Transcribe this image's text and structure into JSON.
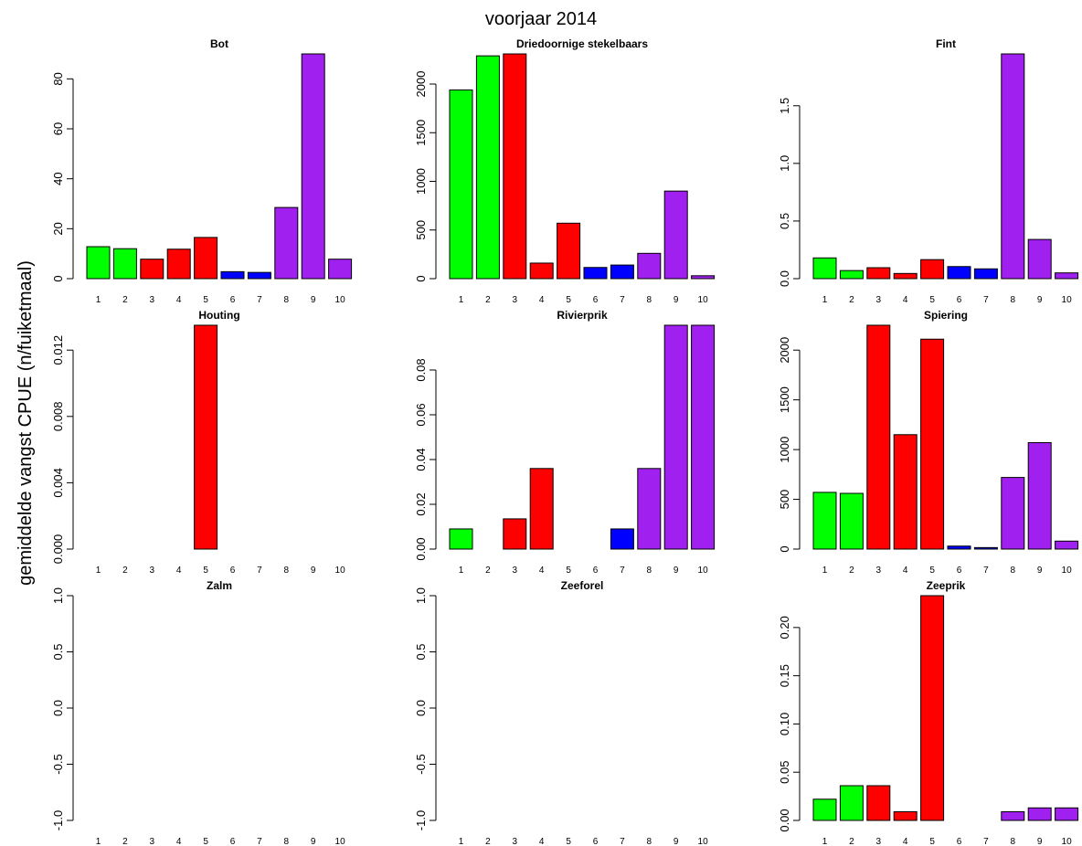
{
  "title": "voorjaar 2014",
  "ylabel": "gemiddelde vangst CPUE (n/fuiketmaal)",
  "colors": {
    "green": "#00FF00",
    "red": "#FF0000",
    "blue": "#0000FF",
    "purple": "#A020F0",
    "outline": "#000000"
  },
  "chart_data": [
    {
      "type": "bar",
      "title": "Bot",
      "categories": [
        "1",
        "2",
        "3",
        "4",
        "5",
        "6",
        "7",
        "8",
        "9",
        "10"
      ],
      "values": [
        12.8,
        12.0,
        7.8,
        11.8,
        16.5,
        2.8,
        2.5,
        28.5,
        90.0,
        7.8
      ],
      "bar_colors": [
        "green",
        "green",
        "red",
        "red",
        "red",
        "blue",
        "blue",
        "purple",
        "purple",
        "purple"
      ],
      "ylim": [
        0,
        90
      ],
      "yticks": [
        0,
        20,
        40,
        60,
        80
      ],
      "ytick_labels": [
        "0",
        "20",
        "40",
        "60",
        "80"
      ]
    },
    {
      "type": "bar",
      "title": "Driedoornige stekelbaars",
      "categories": [
        "1",
        "2",
        "3",
        "4",
        "5",
        "6",
        "7",
        "8",
        "9",
        "10"
      ],
      "values": [
        1940,
        2290,
        2310,
        160,
        570,
        115,
        140,
        260,
        900,
        30
      ],
      "bar_colors": [
        "green",
        "green",
        "red",
        "red",
        "red",
        "blue",
        "blue",
        "purple",
        "purple",
        "purple"
      ],
      "ylim": [
        0,
        2310
      ],
      "yticks": [
        0,
        500,
        1000,
        1500,
        2000
      ],
      "ytick_labels": [
        "0",
        "500",
        "1000",
        "1500",
        "2000"
      ]
    },
    {
      "type": "bar",
      "title": "Fint",
      "categories": [
        "1",
        "2",
        "3",
        "4",
        "5",
        "6",
        "7",
        "8",
        "9",
        "10"
      ],
      "values": [
        0.18,
        0.07,
        0.095,
        0.045,
        0.165,
        0.105,
        0.085,
        1.95,
        0.34,
        0.05
      ],
      "bar_colors": [
        "green",
        "green",
        "red",
        "red",
        "red",
        "blue",
        "blue",
        "purple",
        "purple",
        "purple"
      ],
      "ylim": [
        0,
        1.95
      ],
      "yticks": [
        0,
        0.5,
        1.0,
        1.5
      ],
      "ytick_labels": [
        "0.0",
        "0.5",
        "1.0",
        "1.5"
      ]
    },
    {
      "type": "bar",
      "title": "Houting",
      "categories": [
        "1",
        "2",
        "3",
        "4",
        "5",
        "6",
        "7",
        "8",
        "9",
        "10"
      ],
      "values": [
        0,
        0,
        0,
        0,
        0.0135,
        0,
        0,
        0,
        0,
        0
      ],
      "bar_colors": [
        "green",
        "green",
        "red",
        "red",
        "red",
        "blue",
        "blue",
        "purple",
        "purple",
        "purple"
      ],
      "ylim": [
        0,
        0.0135
      ],
      "yticks": [
        0,
        0.004,
        0.008,
        0.012
      ],
      "ytick_labels": [
        "0.000",
        "0.004",
        "0.008",
        "0.012"
      ]
    },
    {
      "type": "bar",
      "title": "Rivierprik",
      "categories": [
        "1",
        "2",
        "3",
        "4",
        "5",
        "6",
        "7",
        "8",
        "9",
        "10"
      ],
      "values": [
        0.009,
        0,
        0.0135,
        0.036,
        0,
        0,
        0.009,
        0.036,
        0.1,
        0.1
      ],
      "bar_colors": [
        "green",
        "green",
        "red",
        "red",
        "red",
        "blue",
        "blue",
        "purple",
        "purple",
        "purple"
      ],
      "ylim": [
        0,
        0.1
      ],
      "yticks": [
        0,
        0.02,
        0.04,
        0.06,
        0.08
      ],
      "ytick_labels": [
        "0.00",
        "0.02",
        "0.04",
        "0.06",
        "0.08"
      ]
    },
    {
      "type": "bar",
      "title": "Spiering",
      "categories": [
        "1",
        "2",
        "3",
        "4",
        "5",
        "6",
        "7",
        "8",
        "9",
        "10"
      ],
      "values": [
        570,
        560,
        2250,
        1150,
        2110,
        30,
        15,
        720,
        1070,
        80
      ],
      "bar_colors": [
        "green",
        "green",
        "red",
        "red",
        "red",
        "blue",
        "blue",
        "purple",
        "purple",
        "purple"
      ],
      "ylim": [
        0,
        2250
      ],
      "yticks": [
        0,
        500,
        1000,
        1500,
        2000
      ],
      "ytick_labels": [
        "0",
        "500",
        "1000",
        "1500",
        "2000"
      ]
    },
    {
      "type": "bar",
      "title": "Zalm",
      "categories": [
        "1",
        "2",
        "3",
        "4",
        "5",
        "6",
        "7",
        "8",
        "9",
        "10"
      ],
      "values": [
        0,
        0,
        0,
        0,
        0,
        0,
        0,
        0,
        0,
        0
      ],
      "bar_colors": [
        "green",
        "green",
        "red",
        "red",
        "red",
        "blue",
        "blue",
        "purple",
        "purple",
        "purple"
      ],
      "ylim": [
        -1,
        1
      ],
      "yticks": [
        -1.0,
        -0.5,
        0.0,
        0.5,
        1.0
      ],
      "ytick_labels": [
        "-1.0",
        "-0.5",
        "0.0",
        "0.5",
        "1.0"
      ]
    },
    {
      "type": "bar",
      "title": "Zeeforel",
      "categories": [
        "1",
        "2",
        "3",
        "4",
        "5",
        "6",
        "7",
        "8",
        "9",
        "10"
      ],
      "values": [
        0,
        0,
        0,
        0,
        0,
        0,
        0,
        0,
        0,
        0
      ],
      "bar_colors": [
        "green",
        "green",
        "red",
        "red",
        "red",
        "blue",
        "blue",
        "purple",
        "purple",
        "purple"
      ],
      "ylim": [
        -1,
        1
      ],
      "yticks": [
        -1.0,
        -0.5,
        0.0,
        0.5,
        1.0
      ],
      "ytick_labels": [
        "-1.0",
        "-0.5",
        "0.0",
        "0.5",
        "1.0"
      ]
    },
    {
      "type": "bar",
      "title": "Zeeprik",
      "categories": [
        "1",
        "2",
        "3",
        "4",
        "5",
        "6",
        "7",
        "8",
        "9",
        "10"
      ],
      "values": [
        0.022,
        0.036,
        0.036,
        0.009,
        0.233,
        0,
        0,
        0.009,
        0.013,
        0.013
      ],
      "bar_colors": [
        "green",
        "green",
        "red",
        "red",
        "red",
        "blue",
        "blue",
        "purple",
        "purple",
        "purple"
      ],
      "ylim": [
        0,
        0.233
      ],
      "yticks": [
        0,
        0.05,
        0.1,
        0.15,
        0.2
      ],
      "ytick_labels": [
        "0.00",
        "0.05",
        "0.10",
        "0.15",
        "0.20"
      ]
    }
  ]
}
